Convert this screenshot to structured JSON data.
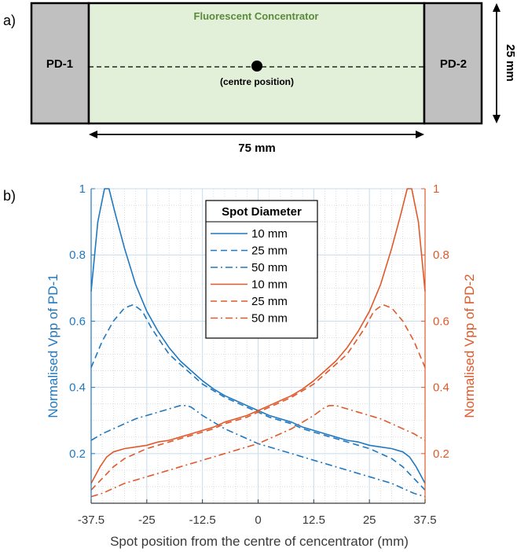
{
  "diagram": {
    "panel_label": "a)",
    "concentrator_label": "Fluorescent Concentrator",
    "pd1_label": "PD-1",
    "pd2_label": "PD-2",
    "centre_label": "(centre position)",
    "width_label": "75 mm",
    "height_label": "25 mm",
    "colors": {
      "concentrator": "#e2efd9",
      "photodiode": "#c0c0c0",
      "title_green": "#5a8a3a"
    }
  },
  "chart_data": {
    "panel_label": "b)",
    "type": "line",
    "xlabel": "Spot position from the centre of cencentrator (mm)",
    "ylabel_left": "Normalised Vpp of PD-1",
    "ylabel_right": "Normalised Vpp of PD-2",
    "xlim": [
      -37.5,
      37.5
    ],
    "ylim": [
      0.05,
      1.0
    ],
    "x_ticks": [
      -37.5,
      -25,
      -12.5,
      0,
      12.5,
      25,
      37.5
    ],
    "x_tick_labels": [
      "-37.5",
      "-25",
      "-12.5",
      "0",
      "12.5",
      "25",
      "37.5"
    ],
    "y_ticks": [
      0.2,
      0.4,
      0.6,
      0.8,
      1.0
    ],
    "y_tick_labels": [
      "0.2",
      "0.4",
      "0.6",
      "0.8",
      "1"
    ],
    "grid": true,
    "legend_title": "Spot Diameter",
    "legend_position": "top-center",
    "colors": {
      "pd1": "#1f78c0",
      "pd2": "#e0592a"
    },
    "series": [
      {
        "name": "10 mm",
        "axis": "left",
        "color": "#1f78c0",
        "dash": "solid",
        "x": [
          -37.5,
          -36,
          -34.5,
          -33.5,
          -32,
          -30,
          -27.5,
          -25,
          -22.5,
          -20,
          -17.5,
          -15,
          -12.5,
          -10,
          -7.5,
          -5,
          -2.5,
          0,
          2.5,
          5,
          7.5,
          10,
          12.5,
          15,
          17.5,
          20,
          22.5,
          25,
          27.5,
          30,
          32.5,
          34,
          35.5,
          37.5
        ],
        "y": [
          0.69,
          0.9,
          1.0,
          1.0,
          0.92,
          0.82,
          0.71,
          0.63,
          0.57,
          0.52,
          0.48,
          0.45,
          0.42,
          0.395,
          0.375,
          0.36,
          0.345,
          0.33,
          0.315,
          0.305,
          0.295,
          0.28,
          0.27,
          0.26,
          0.25,
          0.24,
          0.235,
          0.225,
          0.22,
          0.215,
          0.205,
          0.19,
          0.16,
          0.11
        ]
      },
      {
        "name": "25 mm",
        "axis": "left",
        "color": "#1f78c0",
        "dash": "dashed",
        "x": [
          -37.5,
          -35,
          -32.5,
          -30,
          -28,
          -26,
          -24,
          -22,
          -20,
          -17.5,
          -15,
          -12.5,
          -10,
          -7.5,
          -5,
          -2.5,
          0,
          2.5,
          5,
          7.5,
          10,
          12.5,
          15,
          17.5,
          20,
          22.5,
          25,
          27.5,
          30,
          32.5,
          35,
          37.5
        ],
        "y": [
          0.46,
          0.54,
          0.6,
          0.64,
          0.65,
          0.63,
          0.58,
          0.54,
          0.5,
          0.47,
          0.44,
          0.41,
          0.39,
          0.37,
          0.355,
          0.34,
          0.325,
          0.31,
          0.3,
          0.29,
          0.275,
          0.265,
          0.255,
          0.245,
          0.235,
          0.225,
          0.215,
          0.2,
          0.185,
          0.16,
          0.125,
          0.09
        ]
      },
      {
        "name": "50 mm",
        "axis": "left",
        "color": "#1f78c0",
        "dash": "dashdot",
        "x": [
          -37.5,
          -35,
          -32.5,
          -30,
          -27.5,
          -25,
          -22.5,
          -20,
          -17.5,
          -16,
          -15,
          -12.5,
          -10,
          -7.5,
          -5,
          -2.5,
          0,
          2.5,
          5,
          7.5,
          10,
          12.5,
          15,
          17.5,
          20,
          22.5,
          25,
          27.5,
          30,
          32.5,
          35,
          37.5
        ],
        "y": [
          0.24,
          0.26,
          0.275,
          0.29,
          0.305,
          0.315,
          0.325,
          0.335,
          0.345,
          0.345,
          0.34,
          0.315,
          0.295,
          0.275,
          0.26,
          0.245,
          0.23,
          0.22,
          0.21,
          0.2,
          0.19,
          0.18,
          0.17,
          0.16,
          0.15,
          0.14,
          0.13,
          0.12,
          0.11,
          0.095,
          0.08,
          0.07
        ]
      },
      {
        "name": "10 mm",
        "axis": "right",
        "color": "#e0592a",
        "dash": "solid",
        "x": [
          -37.5,
          -35.5,
          -34,
          -32.5,
          -30,
          -27.5,
          -25,
          -22.5,
          -20,
          -17.5,
          -15,
          -12.5,
          -10,
          -7.5,
          -5,
          -2.5,
          0,
          2.5,
          5,
          7.5,
          10,
          12.5,
          15,
          17.5,
          20,
          22.5,
          25,
          27.5,
          30,
          32,
          33.5,
          34.5,
          36,
          37.5
        ],
        "y": [
          0.11,
          0.16,
          0.19,
          0.205,
          0.215,
          0.22,
          0.225,
          0.235,
          0.24,
          0.25,
          0.26,
          0.27,
          0.28,
          0.295,
          0.305,
          0.315,
          0.33,
          0.345,
          0.36,
          0.375,
          0.395,
          0.42,
          0.45,
          0.48,
          0.52,
          0.57,
          0.63,
          0.71,
          0.82,
          0.92,
          1.0,
          1.0,
          0.9,
          0.69
        ]
      },
      {
        "name": "25 mm",
        "axis": "right",
        "color": "#e0592a",
        "dash": "dashed",
        "x": [
          -37.5,
          -35,
          -32.5,
          -30,
          -27.5,
          -25,
          -22.5,
          -20,
          -17.5,
          -15,
          -12.5,
          -10,
          -7.5,
          -5,
          -2.5,
          0,
          2.5,
          5,
          7.5,
          10,
          12.5,
          15,
          17.5,
          20,
          22,
          24,
          26,
          28,
          30,
          32.5,
          35,
          37.5
        ],
        "y": [
          0.09,
          0.125,
          0.16,
          0.185,
          0.2,
          0.215,
          0.225,
          0.235,
          0.245,
          0.255,
          0.265,
          0.275,
          0.29,
          0.3,
          0.31,
          0.325,
          0.34,
          0.355,
          0.37,
          0.39,
          0.41,
          0.44,
          0.47,
          0.5,
          0.54,
          0.58,
          0.63,
          0.65,
          0.64,
          0.6,
          0.54,
          0.46
        ]
      },
      {
        "name": "50 mm",
        "axis": "right",
        "color": "#e0592a",
        "dash": "dashdot",
        "x": [
          -37.5,
          -35,
          -32.5,
          -30,
          -27.5,
          -25,
          -22.5,
          -20,
          -17.5,
          -15,
          -12.5,
          -10,
          -7.5,
          -5,
          -2.5,
          0,
          2.5,
          5,
          7.5,
          10,
          12.5,
          15,
          16,
          17.5,
          20,
          22.5,
          25,
          27.5,
          30,
          32.5,
          35,
          37.5
        ],
        "y": [
          0.07,
          0.08,
          0.095,
          0.11,
          0.12,
          0.13,
          0.14,
          0.15,
          0.16,
          0.17,
          0.18,
          0.19,
          0.2,
          0.21,
          0.22,
          0.23,
          0.245,
          0.26,
          0.275,
          0.295,
          0.315,
          0.34,
          0.345,
          0.345,
          0.335,
          0.325,
          0.315,
          0.305,
          0.29,
          0.275,
          0.26,
          0.24
        ]
      }
    ]
  }
}
